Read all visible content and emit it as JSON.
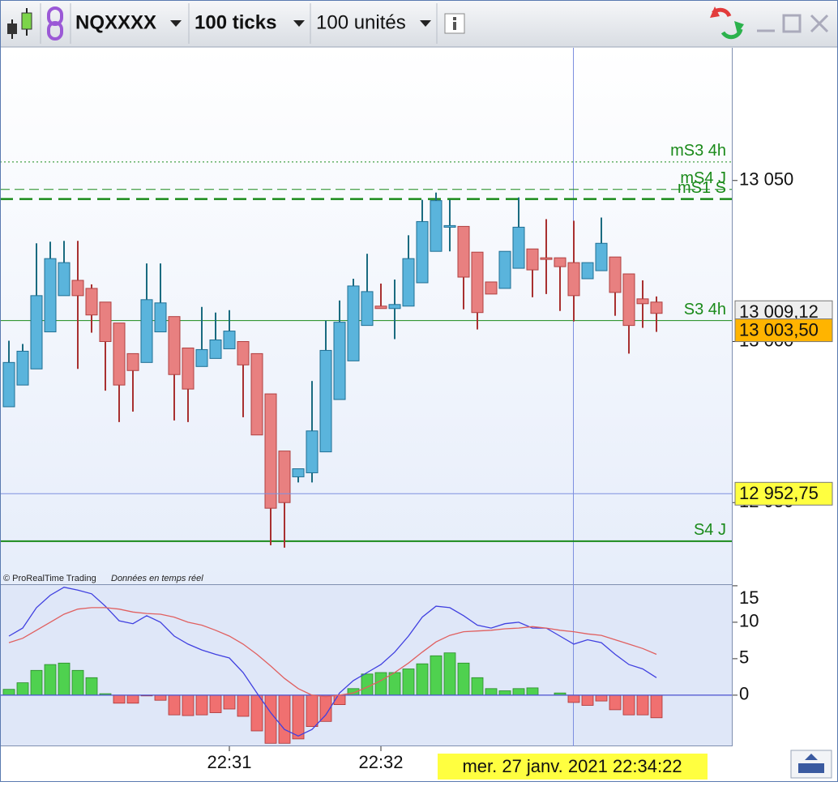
{
  "toolbar": {
    "symbol": "NQXXXX",
    "interval": "100 ticks",
    "units": "100 unités"
  },
  "footer": {
    "copyright": "© ProRealTime Trading",
    "feed": "Données en temps réel"
  },
  "chart_data": [
    {
      "type": "candlestick",
      "categories": [
        null,
        null,
        null,
        null,
        null,
        null,
        null,
        null,
        null,
        null,
        null,
        null,
        null,
        null,
        null,
        null,
        "22:31",
        null,
        null,
        null,
        null,
        null,
        null,
        null,
        null,
        null,
        null,
        "22:32",
        null,
        null,
        null,
        null,
        null,
        null,
        null,
        null,
        null,
        null,
        null,
        null,
        null,
        null,
        null,
        null,
        null,
        null,
        null,
        null
      ],
      "open": [
        12979.75,
        12986.5,
        12991.5,
        13003,
        13014.25,
        13019,
        13016.5,
        13012.25,
        13005.75,
        12996.25,
        12993.5,
        13003,
        13007.75,
        12998,
        12992.25,
        12994.75,
        12997.75,
        13000,
        12996.25,
        12983.75,
        12966,
        12958,
        12959.25,
        12965.75,
        12982,
        12994,
        13005,
        13011,
        13010.25,
        13011,
        13018.25,
        13028,
        13035.75,
        13035.75,
        13027.75,
        13018.5,
        13016.5,
        13022.75,
        13028.75,
        13026,
        13026,
        13024.5,
        13019.5,
        13022,
        13026.25,
        13021,
        13013.25,
        13012.25
      ],
      "high": [
        13000.25,
        12999.25,
        13030.5,
        13031,
        13031.25,
        13031.25,
        13017.75,
        13012.25,
        13005.75,
        12996.25,
        13024.25,
        13024.25,
        13007.75,
        12998,
        13010.75,
        13009,
        13009.75,
        13000,
        12996.25,
        12983.75,
        12966,
        12960.5,
        12987.75,
        13006.5,
        13012.75,
        13019.5,
        13027.25,
        13018,
        13019.25,
        13033,
        13044,
        13046.25,
        13044,
        13035.75,
        13027.75,
        13018.5,
        13028,
        13044.75,
        13028.75,
        13038,
        13026,
        13037.5,
        13024.5,
        13038.5,
        13026.25,
        13021,
        13019,
        13014
      ],
      "low": [
        12979.75,
        12986.5,
        12991.5,
        13003,
        13014.25,
        12991.5,
        13002.75,
        12984.75,
        12975,
        12978.25,
        12993.5,
        13003,
        12975.5,
        12975,
        12992.25,
        12994.75,
        12997.75,
        12976.5,
        12971,
        12936.75,
        12936,
        12956.25,
        12956.25,
        12965.75,
        12982,
        12994,
        13005,
        13010.25,
        13000.75,
        13011,
        13018.25,
        13028,
        13028,
        13010,
        13003.75,
        13014.75,
        13016.5,
        13022.75,
        13013.75,
        13014.75,
        13009.5,
        13006.25,
        13019.5,
        13022,
        13008,
        12996.25,
        13004.25,
        13003
      ],
      "close": [
        12993.5,
        12997,
        13014.25,
        13025.75,
        13024.5,
        13014.25,
        13008.25,
        13000,
        12986.5,
        12991,
        13013,
        13012,
        12989.75,
        12985.25,
        12997.5,
        13000.5,
        13003.25,
        12992.75,
        12971,
        12948.25,
        12950,
        12960.5,
        12972.25,
        12997.25,
        13006,
        13017.25,
        13015.5,
        13010.25,
        13011.5,
        13025.75,
        13037.25,
        13043.75,
        13036,
        13020,
        13009,
        13014.75,
        13028,
        13035.5,
        13022.25,
        13025.75,
        13023.25,
        13014.25,
        13024.5,
        13030.5,
        13015.25,
        13005,
        13011.75,
        13008.75
      ],
      "up_color": "#5ab4dc",
      "down_color": "#e88080",
      "ylim": [
        12924.9,
        13091.2
      ],
      "yticks": [
        {
          "value": 13050,
          "label": "13 050"
        },
        {
          "value": 13000,
          "label": "13 000"
        },
        {
          "value": 12950,
          "label": "12 950"
        }
      ],
      "levels": [
        {
          "label": "mS3 4h",
          "value": 13055.75,
          "style": "dotted"
        },
        {
          "label": "mS4 J",
          "value": 13047.25,
          "style": "dashed"
        },
        {
          "label": "mS1 S",
          "value": 13044.25,
          "style": "dashed-thick"
        },
        {
          "label": "S3 4h",
          "value": 13006.5,
          "style": "solid"
        },
        {
          "label": "S4 J",
          "value": 12938,
          "style": "solid-thick"
        }
      ],
      "level_color": "#1a8a1a",
      "price_labels": [
        {
          "value": 13009.12,
          "label": "13 009,12",
          "color": "#eeeeee"
        },
        {
          "value": 13003.5,
          "label": "13 003,50",
          "color": "#ffb400"
        },
        {
          "value": 12952.75,
          "label": "12 952,75",
          "color": "#ffff40"
        }
      ],
      "cursor_time": "mer. 27 janv. 2021 22:34:22"
    },
    {
      "type": "macd",
      "values": [
        0.8,
        1.7,
        3.4,
        4.2,
        4.4,
        3.4,
        2.4,
        0.2,
        -1.1,
        -1.1,
        -0.1,
        -0.7,
        -2.7,
        -2.8,
        -2.7,
        -2.4,
        -1.9,
        -2.9,
        -4.9,
        -6.6,
        -6.6,
        -6,
        -4.3,
        -3.6,
        -1.3,
        0.9,
        2.9,
        3.1,
        3.1,
        3.6,
        4.3,
        5.4,
        5.8,
        4.4,
        2.4,
        0.9,
        0.6,
        0.9,
        1,
        0,
        0.3,
        -1,
        -1.4,
        -0.8,
        -2,
        -2.7,
        -2.7,
        -3.1
      ],
      "up_color": "#4fd14f",
      "down_color": "#f07070",
      "series": [
        {
          "color": "#4040e0",
          "values": [
            8.1,
            9.2,
            12,
            13.7,
            14.8,
            14.4,
            13.9,
            12.2,
            10.2,
            9.8,
            10.9,
            10,
            8.1,
            7,
            6.2,
            5.6,
            5.1,
            3.1,
            0.3,
            -2.4,
            -4.7,
            -5.6,
            -4.7,
            -2.7,
            0.3,
            2,
            3.1,
            4.2,
            5.9,
            8.1,
            10.7,
            12.2,
            12,
            10.9,
            9.6,
            9.2,
            9.8,
            10,
            9.2,
            9.2,
            8.1,
            7,
            7.6,
            7.2,
            5.6,
            4.2,
            3.6,
            2.4
          ]
        },
        {
          "color": "#e06060",
          "values": [
            7.2,
            7.8,
            8.9,
            10,
            11.1,
            11.8,
            12,
            12,
            11.8,
            11.4,
            11.2,
            11.1,
            10.7,
            10,
            9.6,
            8.9,
            8.1,
            7,
            5.6,
            4,
            2.3,
            0.9,
            0,
            -0.2,
            0,
            0.3,
            1.1,
            2,
            3.1,
            4.4,
            5.9,
            7.3,
            8.2,
            8.7,
            8.8,
            8.9,
            9.1,
            9.2,
            9.4,
            9.2,
            8.9,
            8.7,
            8.4,
            8.2,
            7.6,
            7,
            6.4,
            5.6
          ]
        }
      ],
      "ylim": [
        -6.9,
        15.1
      ],
      "yticks": [
        0,
        5,
        10,
        15
      ]
    }
  ]
}
